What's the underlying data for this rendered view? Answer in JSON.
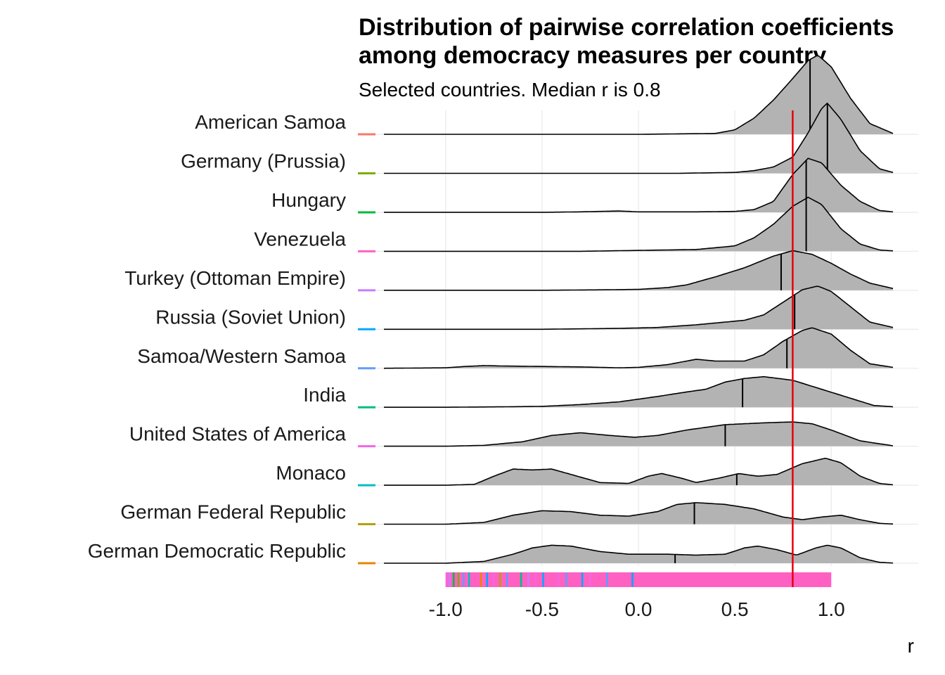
{
  "chart_data": {
    "type": "ridgeline",
    "title_line1": "Distribution of pairwise correlation coefficients",
    "title_line2": "among democracy measures per country",
    "subtitle": "Selected countries. Median r is 0.8",
    "xlabel": "r",
    "ylabel": "",
    "xlim": [
      -1.32,
      1.32
    ],
    "x_ticks": [
      -1.0,
      -0.5,
      0.0,
      0.5,
      1.0
    ],
    "x_tick_labels": [
      "-1.0",
      "-0.5",
      "0.0",
      "0.5",
      "1.0"
    ],
    "grid": true,
    "overall_median": 0.8,
    "median_line_color": "#E8000B",
    "fill_color": "#B3B3B3",
    "series": [
      {
        "name": "American Samoa",
        "color": "#F8766D",
        "median": 0.89,
        "density": [
          [
            -1.32,
            0
          ],
          [
            0,
            0
          ],
          [
            0.4,
            0.01
          ],
          [
            0.5,
            0.05
          ],
          [
            0.6,
            0.18
          ],
          [
            0.7,
            0.38
          ],
          [
            0.8,
            0.62
          ],
          [
            0.88,
            0.82
          ],
          [
            0.93,
            0.88
          ],
          [
            1.0,
            0.75
          ],
          [
            1.1,
            0.4
          ],
          [
            1.2,
            0.12
          ],
          [
            1.32,
            0.01
          ]
        ]
      },
      {
        "name": "Germany (Prussia)",
        "color": "#7CAE00",
        "median": 0.98,
        "density": [
          [
            -1.32,
            0
          ],
          [
            0.2,
            0
          ],
          [
            0.5,
            0.01
          ],
          [
            0.6,
            0.03
          ],
          [
            0.7,
            0.07
          ],
          [
            0.8,
            0.18
          ],
          [
            0.88,
            0.45
          ],
          [
            0.95,
            0.72
          ],
          [
            0.98,
            0.78
          ],
          [
            1.05,
            0.6
          ],
          [
            1.15,
            0.25
          ],
          [
            1.25,
            0.05
          ],
          [
            1.32,
            0.01
          ]
        ]
      },
      {
        "name": "Hungary",
        "color": "#00BA38",
        "median": 0.87,
        "density": [
          [
            -1.32,
            0
          ],
          [
            -0.5,
            0
          ],
          [
            -0.3,
            0.005
          ],
          [
            -0.2,
            0.01
          ],
          [
            -0.1,
            0.015
          ],
          [
            0.0,
            0.005
          ],
          [
            0.3,
            0.005
          ],
          [
            0.5,
            0.01
          ],
          [
            0.6,
            0.03
          ],
          [
            0.7,
            0.12
          ],
          [
            0.8,
            0.42
          ],
          [
            0.88,
            0.6
          ],
          [
            0.95,
            0.55
          ],
          [
            1.05,
            0.3
          ],
          [
            1.15,
            0.12
          ],
          [
            1.25,
            0.02
          ],
          [
            1.32,
            0.005
          ]
        ]
      },
      {
        "name": "Venezuela",
        "color": "#FF61C3",
        "median": 0.87,
        "density": [
          [
            -1.32,
            0
          ],
          [
            -0.3,
            0
          ],
          [
            0.0,
            0.01
          ],
          [
            0.3,
            0.02
          ],
          [
            0.5,
            0.06
          ],
          [
            0.6,
            0.15
          ],
          [
            0.7,
            0.3
          ],
          [
            0.8,
            0.5
          ],
          [
            0.88,
            0.6
          ],
          [
            0.95,
            0.52
          ],
          [
            1.05,
            0.25
          ],
          [
            1.15,
            0.08
          ],
          [
            1.25,
            0.015
          ],
          [
            1.32,
            0.005
          ]
        ]
      },
      {
        "name": "Turkey (Ottoman Empire)",
        "color": "#C77CFF",
        "median": 0.74,
        "density": [
          [
            -1.32,
            0
          ],
          [
            -0.5,
            0
          ],
          [
            -0.2,
            0.005
          ],
          [
            0.0,
            0.01
          ],
          [
            0.15,
            0.03
          ],
          [
            0.25,
            0.06
          ],
          [
            0.4,
            0.15
          ],
          [
            0.55,
            0.25
          ],
          [
            0.7,
            0.38
          ],
          [
            0.8,
            0.44
          ],
          [
            0.9,
            0.4
          ],
          [
            1.0,
            0.3
          ],
          [
            1.1,
            0.18
          ],
          [
            1.2,
            0.08
          ],
          [
            1.32,
            0.02
          ]
        ]
      },
      {
        "name": "Russia (Soviet Union)",
        "color": "#00A9FF",
        "median": 0.81,
        "density": [
          [
            -1.32,
            0
          ],
          [
            -0.5,
            0
          ],
          [
            -0.3,
            0.005
          ],
          [
            -0.1,
            0.01
          ],
          [
            0.1,
            0.02
          ],
          [
            0.3,
            0.05
          ],
          [
            0.45,
            0.08
          ],
          [
            0.55,
            0.1
          ],
          [
            0.65,
            0.16
          ],
          [
            0.75,
            0.3
          ],
          [
            0.85,
            0.44
          ],
          [
            0.93,
            0.48
          ],
          [
            1.0,
            0.42
          ],
          [
            1.1,
            0.25
          ],
          [
            1.2,
            0.08
          ],
          [
            1.32,
            0.02
          ]
        ]
      },
      {
        "name": "Samoa/Western Samoa",
        "color": "#619CFF",
        "median": 0.77,
        "density": [
          [
            -1.32,
            0
          ],
          [
            -1.0,
            0.005
          ],
          [
            -0.9,
            0.02
          ],
          [
            -0.8,
            0.03
          ],
          [
            -0.7,
            0.025
          ],
          [
            -0.5,
            0.02
          ],
          [
            -0.3,
            0.015
          ],
          [
            -0.1,
            0.005
          ],
          [
            0.0,
            0.01
          ],
          [
            0.15,
            0.04
          ],
          [
            0.3,
            0.1
          ],
          [
            0.4,
            0.08
          ],
          [
            0.55,
            0.08
          ],
          [
            0.65,
            0.15
          ],
          [
            0.75,
            0.3
          ],
          [
            0.85,
            0.42
          ],
          [
            0.9,
            0.45
          ],
          [
            1.0,
            0.38
          ],
          [
            1.1,
            0.2
          ],
          [
            1.2,
            0.05
          ],
          [
            1.32,
            0.01
          ]
        ]
      },
      {
        "name": "India",
        "color": "#00BF7D",
        "median": 0.54,
        "density": [
          [
            -1.32,
            0
          ],
          [
            -1.0,
            0
          ],
          [
            -0.7,
            0.005
          ],
          [
            -0.5,
            0.01
          ],
          [
            -0.3,
            0.03
          ],
          [
            -0.1,
            0.06
          ],
          [
            0.1,
            0.12
          ],
          [
            0.25,
            0.17
          ],
          [
            0.35,
            0.2
          ],
          [
            0.45,
            0.28
          ],
          [
            0.55,
            0.32
          ],
          [
            0.65,
            0.34
          ],
          [
            0.8,
            0.3
          ],
          [
            0.95,
            0.2
          ],
          [
            1.1,
            0.1
          ],
          [
            1.22,
            0.02
          ],
          [
            1.32,
            0.005
          ]
        ]
      },
      {
        "name": "United States of America",
        "color": "#F564E3",
        "median": 0.45,
        "density": [
          [
            -1.32,
            0
          ],
          [
            -1.0,
            0
          ],
          [
            -0.8,
            0.01
          ],
          [
            -0.6,
            0.05
          ],
          [
            -0.45,
            0.12
          ],
          [
            -0.3,
            0.15
          ],
          [
            -0.15,
            0.12
          ],
          [
            -0.02,
            0.1
          ],
          [
            0.1,
            0.12
          ],
          [
            0.25,
            0.18
          ],
          [
            0.45,
            0.24
          ],
          [
            0.65,
            0.26
          ],
          [
            0.8,
            0.27
          ],
          [
            0.9,
            0.25
          ],
          [
            1.0,
            0.18
          ],
          [
            1.15,
            0.06
          ],
          [
            1.32,
            0.005
          ]
        ]
      },
      {
        "name": "Monaco",
        "color": "#00BFC4",
        "median": 0.51,
        "density": [
          [
            -1.32,
            0
          ],
          [
            -1.0,
            0
          ],
          [
            -0.85,
            0.01
          ],
          [
            -0.75,
            0.1
          ],
          [
            -0.65,
            0.18
          ],
          [
            -0.55,
            0.17
          ],
          [
            -0.45,
            0.18
          ],
          [
            -0.35,
            0.12
          ],
          [
            -0.2,
            0.03
          ],
          [
            -0.05,
            0.02
          ],
          [
            0.05,
            0.1
          ],
          [
            0.12,
            0.13
          ],
          [
            0.22,
            0.08
          ],
          [
            0.3,
            0.03
          ],
          [
            0.42,
            0.08
          ],
          [
            0.52,
            0.13
          ],
          [
            0.62,
            0.1
          ],
          [
            0.72,
            0.12
          ],
          [
            0.85,
            0.24
          ],
          [
            0.97,
            0.3
          ],
          [
            1.05,
            0.25
          ],
          [
            1.15,
            0.1
          ],
          [
            1.25,
            0.02
          ],
          [
            1.32,
            0.005
          ]
        ]
      },
      {
        "name": "German Federal Republic",
        "color": "#B79F00",
        "median": 0.29,
        "density": [
          [
            -1.32,
            0
          ],
          [
            -1.0,
            0
          ],
          [
            -0.8,
            0.02
          ],
          [
            -0.65,
            0.1
          ],
          [
            -0.5,
            0.15
          ],
          [
            -0.35,
            0.14
          ],
          [
            -0.2,
            0.1
          ],
          [
            -0.05,
            0.09
          ],
          [
            0.1,
            0.14
          ],
          [
            0.2,
            0.22
          ],
          [
            0.3,
            0.24
          ],
          [
            0.45,
            0.22
          ],
          [
            0.6,
            0.17
          ],
          [
            0.75,
            0.08
          ],
          [
            0.85,
            0.05
          ],
          [
            0.95,
            0.08
          ],
          [
            1.05,
            0.1
          ],
          [
            1.15,
            0.05
          ],
          [
            1.25,
            0.01
          ],
          [
            1.32,
            0.002
          ]
        ]
      },
      {
        "name": "German Democratic Republic",
        "color": "#E58700",
        "median": 0.19,
        "density": [
          [
            -1.32,
            0
          ],
          [
            -1.0,
            0
          ],
          [
            -0.8,
            0.02
          ],
          [
            -0.65,
            0.1
          ],
          [
            -0.55,
            0.17
          ],
          [
            -0.45,
            0.2
          ],
          [
            -0.35,
            0.19
          ],
          [
            -0.2,
            0.13
          ],
          [
            -0.05,
            0.1
          ],
          [
            0.15,
            0.1
          ],
          [
            0.3,
            0.09
          ],
          [
            0.45,
            0.1
          ],
          [
            0.55,
            0.17
          ],
          [
            0.62,
            0.19
          ],
          [
            0.72,
            0.15
          ],
          [
            0.82,
            0.09
          ],
          [
            0.92,
            0.17
          ],
          [
            0.98,
            0.2
          ],
          [
            1.05,
            0.17
          ],
          [
            1.15,
            0.06
          ],
          [
            1.25,
            0.01
          ],
          [
            1.32,
            0.002
          ]
        ]
      }
    ],
    "rug_colors": [
      "#F564E3",
      "#C77CFF",
      "#00BA38",
      "#7CAE00",
      "#619CFF",
      "#00BFC4",
      "#FF61C3",
      "#E58700",
      "#00A9FF",
      "#F564E3",
      "#B79F00",
      "#619CFF",
      "#FF61C3",
      "#00BF7D",
      "#C77CFF",
      "#F564E3",
      "#00A9FF",
      "#FF61C3",
      "#F564E3",
      "#619CFF",
      "#FF61C3",
      "#00A9FF",
      "#F564E3",
      "#FF61C3",
      "#619CFF",
      "#FF61C3",
      "#FF61C3",
      "#00A9FF",
      "#FF61C3",
      "#FF61C3"
    ],
    "rug_range": [
      -1.0,
      1.0
    ]
  }
}
